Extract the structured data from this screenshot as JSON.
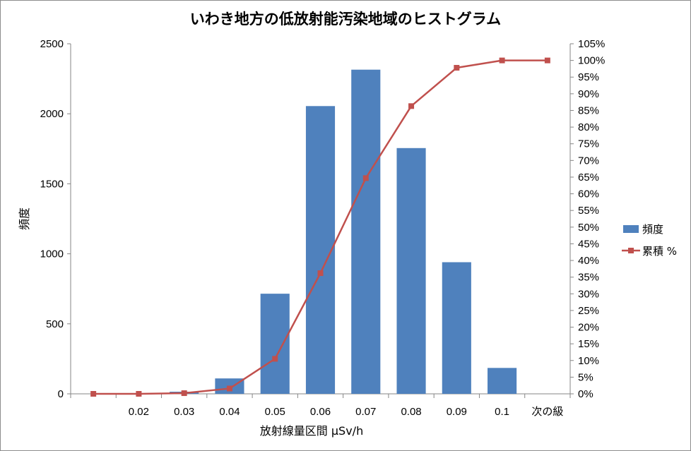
{
  "chart_data": {
    "type": "bar",
    "title": "いわき地方の低放射能汚染地域のヒストグラム",
    "xlabel": "放射線量区間 µSv/h",
    "ylabel": "頻度",
    "categories": [
      "",
      "0.02",
      "0.03",
      "0.04",
      "0.05",
      "0.06",
      "0.07",
      "0.08",
      "0.09",
      "0.1",
      "次の級"
    ],
    "ylim": [
      0,
      2500
    ],
    "yticks": [
      "0",
      "500",
      "1000",
      "1500",
      "2000",
      "2500"
    ],
    "y2lim": [
      0,
      105
    ],
    "y2ticks": [
      "0%",
      "5%",
      "10%",
      "15%",
      "20%",
      "25%",
      "30%",
      "35%",
      "40%",
      "45%",
      "50%",
      "55%",
      "60%",
      "65%",
      "70%",
      "75%",
      "80%",
      "85%",
      "90%",
      "95%",
      "100%",
      "105%"
    ],
    "series": [
      {
        "name": "頻度",
        "kind": "bar",
        "axis": "left",
        "color": "#4f81bd",
        "values": [
          0,
          0,
          15,
          110,
          715,
          2055,
          2315,
          1755,
          940,
          185,
          0
        ]
      },
      {
        "name": "累積 %",
        "kind": "line",
        "axis": "right",
        "color": "#c0504d",
        "marker": "square",
        "values": [
          0,
          0,
          0.2,
          1.6,
          10.5,
          36.2,
          64.7,
          86.3,
          97.8,
          100,
          100
        ]
      }
    ],
    "grid": false,
    "legend": "right"
  }
}
